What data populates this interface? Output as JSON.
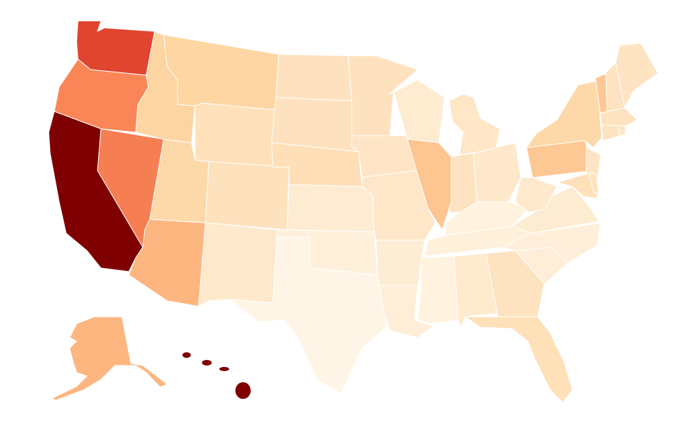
{
  "map": {
    "type": "choropleth",
    "region": "United States",
    "background": "#ffffff",
    "border_color": "#ffffff",
    "state_colors": {
      "WA": "#e04530",
      "OR": "#fa8657",
      "CA": "#7f0000",
      "NV": "#f67e53",
      "ID": "#fdd5a2",
      "MT": "#fdd6a3",
      "WY": "#fee1bb",
      "UT": "#fdd9aa",
      "AZ": "#fdb680",
      "CO": "#fee1bd",
      "NM": "#fee9cc",
      "ND": "#fee2bf",
      "SD": "#fee2bf",
      "NE": "#fedfb8",
      "KS": "#feecd2",
      "OK": "#fff0db",
      "TX": "#fff5e6",
      "MN": "#fee2bf",
      "IA": "#fee5c5",
      "MO": "#fee7c9",
      "AR": "#feedd5",
      "LA": "#feeed7",
      "WI": "#feebd0",
      "IL": "#fdc590",
      "MI": "#fee6c7",
      "IN": "#fee3c0",
      "OH": "#fee8cb",
      "KY": "#fff3df",
      "TN": "#fff0db",
      "MS": "#fff3e0",
      "AL": "#feeacd",
      "GA": "#fee3c1",
      "FL": "#fee0b9",
      "SC": "#feeed8",
      "NC": "#ffefda",
      "VA": "#feecd2",
      "WV": "#fee9cc",
      "PA": "#fdc893",
      "NY": "#fdd9aa",
      "NJ": "#fee4c3",
      "MD": "#fee0b9",
      "DE": "#fee3c0",
      "VT": "#fdc893",
      "NH": "#fee3c1",
      "ME": "#fee4c3",
      "MA": "#fee3c1",
      "CT": "#fee3c1",
      "RI": "#fee4c3",
      "AK": "#fdb680",
      "HI": "#7f0000"
    }
  }
}
